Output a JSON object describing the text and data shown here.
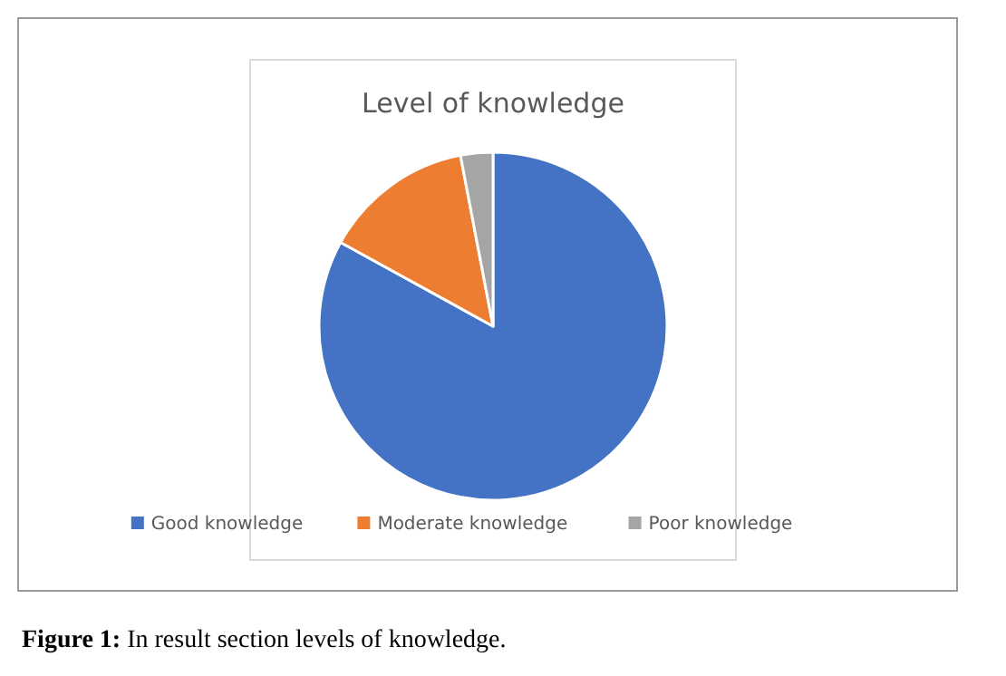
{
  "chart_data": {
    "type": "pie",
    "title": "Level of knowledge",
    "categories": [
      "Good knowledge",
      "Moderate knowledge",
      "Poor knowledge"
    ],
    "values": [
      83,
      14,
      3
    ],
    "colors": [
      "#4472c4",
      "#ed7d31",
      "#a5a5a5"
    ],
    "legend": "bottom",
    "annotations": [
      "Figure 1: In result section levels of knowledge."
    ]
  }
}
